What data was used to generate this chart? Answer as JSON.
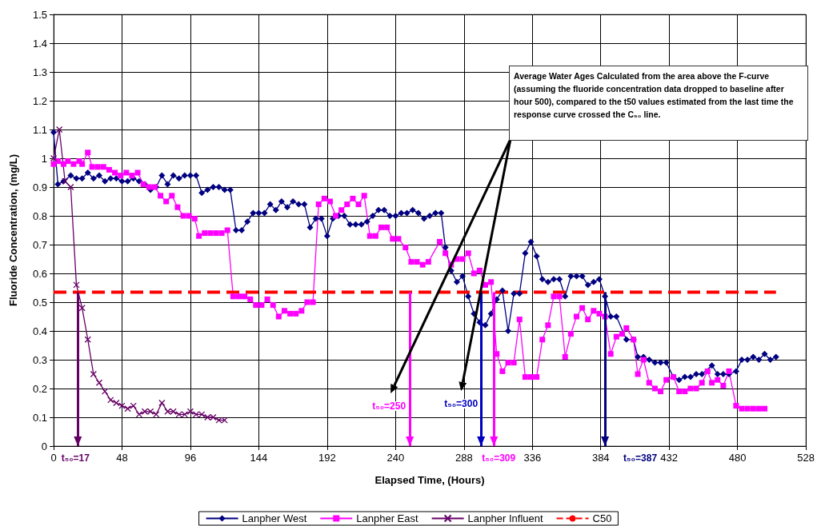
{
  "chart_data": {
    "type": "line",
    "xlabel": "Elapsed Time, (Hours)",
    "ylabel": "Fluoride Concentration, (mg/L)",
    "xlim": [
      0,
      528
    ],
    "xticks": [
      0,
      48,
      96,
      144,
      192,
      240,
      288,
      336,
      384,
      432,
      480,
      528
    ],
    "ylim": [
      0,
      1.5
    ],
    "yticks": [
      0,
      0.1,
      0.2,
      0.3,
      0.4,
      0.5,
      0.6,
      0.7,
      0.8,
      0.9,
      1,
      1.1,
      1.2,
      1.3,
      1.4,
      1.5
    ],
    "grid": true,
    "legend": "bottom",
    "series": [
      {
        "name": "Lanpher West",
        "color": "#000080",
        "marker": "diamond",
        "x": [
          0,
          3,
          7,
          12,
          16,
          20,
          24,
          28,
          32,
          36,
          40,
          44,
          48,
          52,
          56,
          60,
          64,
          68,
          72,
          76,
          80,
          84,
          88,
          92,
          96,
          100,
          104,
          108,
          112,
          116,
          120,
          124,
          128,
          132,
          136,
          140,
          144,
          148,
          152,
          156,
          160,
          164,
          168,
          172,
          176,
          180,
          184,
          188,
          192,
          196,
          200,
          204,
          208,
          212,
          216,
          220,
          224,
          228,
          232,
          236,
          240,
          244,
          248,
          252,
          256,
          260,
          264,
          268,
          272,
          275,
          279,
          283,
          287,
          291,
          295,
          299,
          303,
          307,
          311,
          315,
          319,
          323,
          327,
          331,
          335,
          339,
          343,
          347,
          351,
          355,
          359,
          363,
          367,
          371,
          375,
          379,
          383,
          387,
          391,
          395,
          402,
          407,
          410,
          414,
          418,
          422,
          426,
          430,
          435,
          439,
          443,
          447,
          451,
          455,
          462,
          466,
          470,
          474,
          479,
          483,
          487,
          491,
          495,
          499,
          503,
          507
        ],
        "values": [
          1.09,
          0.91,
          0.92,
          0.94,
          0.93,
          0.93,
          0.95,
          0.93,
          0.94,
          0.92,
          0.93,
          0.93,
          0.92,
          0.92,
          0.93,
          0.92,
          0.91,
          0.89,
          0.9,
          0.94,
          0.91,
          0.94,
          0.93,
          0.94,
          0.94,
          0.94,
          0.88,
          0.89,
          0.9,
          0.9,
          0.89,
          0.89,
          0.75,
          0.75,
          0.78,
          0.81,
          0.81,
          0.81,
          0.84,
          0.82,
          0.85,
          0.83,
          0.85,
          0.84,
          0.84,
          0.76,
          0.79,
          0.79,
          0.73,
          0.79,
          0.8,
          0.8,
          0.77,
          0.77,
          0.77,
          0.78,
          0.8,
          0.82,
          0.82,
          0.8,
          0.8,
          0.81,
          0.81,
          0.82,
          0.81,
          0.79,
          0.8,
          0.81,
          0.81,
          0.69,
          0.61,
          0.57,
          0.59,
          0.52,
          0.46,
          0.43,
          0.42,
          0.46,
          0.51,
          0.54,
          0.4,
          0.53,
          0.53,
          0.67,
          0.71,
          0.66,
          0.58,
          0.57,
          0.58,
          0.58,
          0.52,
          0.59,
          0.59,
          0.59,
          0.56,
          0.57,
          0.58,
          0.52,
          0.45,
          0.45,
          0.37,
          0.37,
          0.31,
          0.31,
          0.3,
          0.29,
          0.29,
          0.29,
          0.24,
          0.23,
          0.24,
          0.24,
          0.25,
          0.25,
          0.28,
          0.25,
          0.25,
          0.25,
          0.26,
          0.3,
          0.3,
          0.31,
          0.3,
          0.32,
          0.3,
          0.31
        ]
      },
      {
        "name": "Lanpher East",
        "color": "#ff00ff",
        "marker": "square",
        "x": [
          0,
          3,
          7,
          10,
          14,
          18,
          20,
          24,
          27,
          31,
          35,
          39,
          43,
          47,
          51,
          55,
          59,
          63,
          67,
          71,
          75,
          79,
          83,
          87,
          91,
          95,
          99,
          102,
          106,
          110,
          114,
          118,
          122,
          126,
          130,
          134,
          138,
          142,
          146,
          150,
          154,
          158,
          162,
          166,
          170,
          174,
          178,
          182,
          186,
          190,
          194,
          198,
          202,
          206,
          210,
          214,
          218,
          222,
          226,
          230,
          234,
          238,
          242,
          247,
          251,
          255,
          259,
          263,
          271,
          275,
          279,
          283,
          287,
          291,
          295,
          299,
          303,
          307,
          311,
          315,
          319,
          323,
          327,
          331,
          335,
          339,
          343,
          347,
          351,
          355,
          359,
          363,
          367,
          371,
          375,
          379,
          383,
          387,
          391,
          395,
          399,
          402,
          407,
          410,
          414,
          418,
          422,
          426,
          430,
          435,
          439,
          443,
          447,
          451,
          455,
          459,
          462,
          466,
          470,
          474,
          479,
          483,
          487,
          491,
          495,
          499
        ],
        "values": [
          0.98,
          0.99,
          0.98,
          0.99,
          0.98,
          0.99,
          0.98,
          1.02,
          0.97,
          0.97,
          0.97,
          0.96,
          0.95,
          0.94,
          0.95,
          0.94,
          0.95,
          0.91,
          0.9,
          0.9,
          0.87,
          0.85,
          0.87,
          0.83,
          0.8,
          0.8,
          0.79,
          0.73,
          0.74,
          0.74,
          0.74,
          0.74,
          0.75,
          0.52,
          0.52,
          0.52,
          0.51,
          0.49,
          0.49,
          0.51,
          0.49,
          0.45,
          0.47,
          0.46,
          0.46,
          0.47,
          0.5,
          0.5,
          0.84,
          0.86,
          0.85,
          0.8,
          0.82,
          0.84,
          0.86,
          0.84,
          0.87,
          0.73,
          0.73,
          0.76,
          0.76,
          0.72,
          0.72,
          0.69,
          0.64,
          0.64,
          0.63,
          0.64,
          0.71,
          0.67,
          0.63,
          0.65,
          0.65,
          0.67,
          0.6,
          0.61,
          0.56,
          0.57,
          0.32,
          0.26,
          0.29,
          0.29,
          0.44,
          0.24,
          0.24,
          0.24,
          0.37,
          0.42,
          0.52,
          0.52,
          0.31,
          0.39,
          0.45,
          0.48,
          0.44,
          0.47,
          0.46,
          0.45,
          0.32,
          0.38,
          0.39,
          0.41,
          0.37,
          0.25,
          0.3,
          0.22,
          0.2,
          0.19,
          0.23,
          0.24,
          0.19,
          0.19,
          0.2,
          0.2,
          0.22,
          0.26,
          0.22,
          0.23,
          0.21,
          0.26,
          0.14,
          0.13,
          0.13,
          0.13,
          0.13,
          0.13
        ]
      },
      {
        "name": "Lanpher Influent",
        "color": "#660066",
        "marker": "cross",
        "x": [
          0,
          4,
          8,
          12,
          16,
          20,
          24,
          28,
          32,
          36,
          40,
          44,
          48,
          52,
          56,
          60,
          64,
          68,
          72,
          76,
          80,
          84,
          88,
          92,
          96,
          100,
          104,
          108,
          112,
          116,
          120
        ],
        "values": [
          1.0,
          1.1,
          0.92,
          0.9,
          0.56,
          0.48,
          0.37,
          0.25,
          0.22,
          0.19,
          0.16,
          0.15,
          0.14,
          0.13,
          0.14,
          0.11,
          0.12,
          0.12,
          0.11,
          0.15,
          0.12,
          0.12,
          0.11,
          0.11,
          0.12,
          0.11,
          0.11,
          0.1,
          0.1,
          0.09,
          0.09
        ]
      },
      {
        "name": "C50",
        "color": "#ff0000",
        "marker": "none",
        "line_style": "dashed",
        "x": [
          0,
          507
        ],
        "values": [
          0.535,
          0.535
        ]
      }
    ],
    "ref_lines": [
      {
        "axis": "x",
        "value": 17,
        "label": "t₅₀=17",
        "color": "#660066"
      },
      {
        "axis": "x",
        "value": 250,
        "label": "t₅₀=250",
        "color": "#ff00ff"
      },
      {
        "axis": "x",
        "value": 300,
        "label": "t₅₀=300",
        "color": "#0000c0"
      },
      {
        "axis": "x",
        "value": 309,
        "label": "t₅₀=309",
        "color": "#ff00ff"
      },
      {
        "axis": "x",
        "value": 387,
        "label": "t₅₀=387",
        "color": "#000080"
      }
    ],
    "annotations": [
      "Average Water Ages Calculated from the area above the F-curve (assuming the fluoride concentration data dropped to baseline after hour 500), compared to the t50 values estimated from the last time the response curve crossed the C₅₀ line."
    ]
  }
}
